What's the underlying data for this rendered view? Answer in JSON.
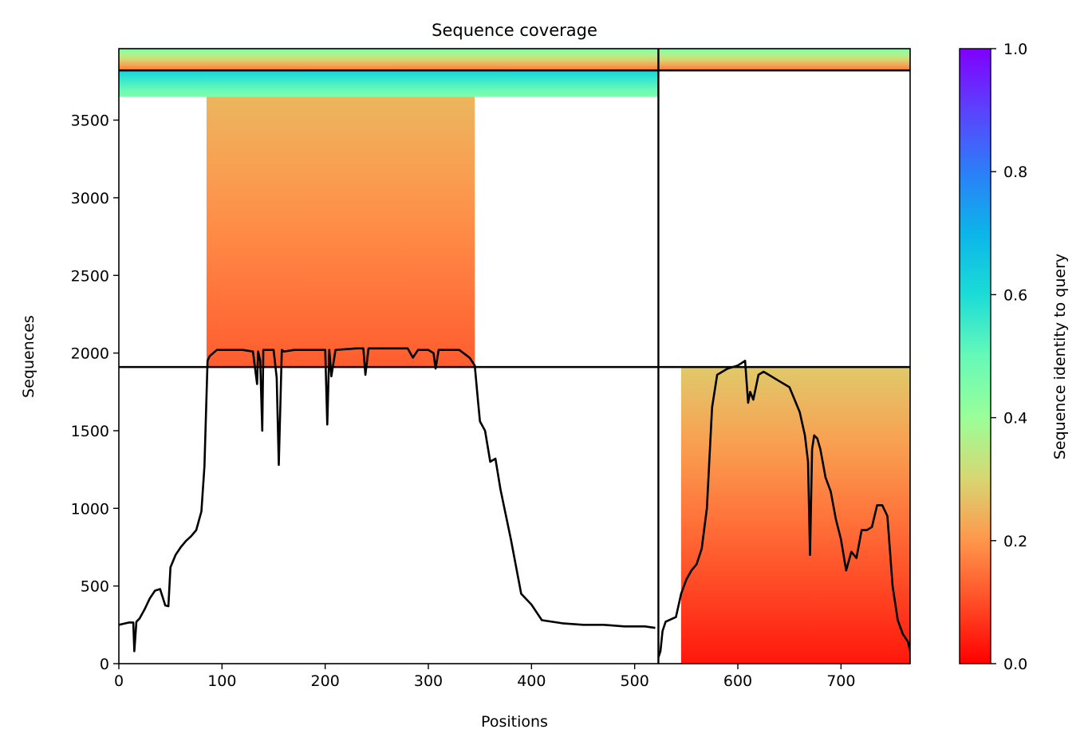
{
  "chart_data": {
    "type": "heatmap",
    "title": "Sequence coverage",
    "xlabel": "Positions",
    "ylabel": "Sequences",
    "xlim": [
      0,
      767
    ],
    "ylim": [
      0,
      3960
    ],
    "x_ticks": [
      0,
      100,
      200,
      300,
      400,
      500,
      600,
      700
    ],
    "y_ticks": [
      0,
      500,
      1000,
      1500,
      2000,
      2500,
      3000,
      3500
    ],
    "grid": false,
    "colorbar": {
      "label": "Sequence identity to query",
      "colormap": "rainbow_r",
      "range": [
        0,
        1
      ],
      "ticks": [
        0.0,
        0.2,
        0.4,
        0.6,
        0.8,
        1.0
      ]
    },
    "chain_boundaries": {
      "x": [
        523
      ],
      "y": [
        1910,
        3820
      ]
    },
    "coverage_blocks": [
      {
        "name": "chain A (paired)",
        "x_start": 0,
        "x_end": 523,
        "y_start": 3820,
        "y_end": 3960,
        "identity_bottom": 0.15,
        "identity_top": 0.45
      },
      {
        "name": "chain B (paired)",
        "x_start": 523,
        "x_end": 767,
        "y_start": 3820,
        "y_end": 3960,
        "identity_bottom": 0.15,
        "identity_top": 0.45
      },
      {
        "name": "chain A high identity",
        "x_start": 0,
        "x_end": 523,
        "y_start": 3650,
        "y_end": 3820,
        "identity_bottom": 0.45,
        "identity_top": 0.62
      },
      {
        "name": "chain A unpaired",
        "x_start": 85,
        "x_end": 345,
        "y_start": 1910,
        "y_end": 3650,
        "identity_bottom": 0.12,
        "identity_top": 0.25
      },
      {
        "name": "chain B unpaired",
        "x_start": 545,
        "x_end": 767,
        "y_start": 0,
        "y_end": 1910,
        "identity_bottom": 0.03,
        "identity_top": 0.28
      }
    ],
    "coverage_line_chain_a": {
      "x": [
        0,
        10,
        14,
        15,
        17,
        20,
        25,
        30,
        35,
        40,
        45,
        48,
        50,
        55,
        60,
        65,
        70,
        75,
        80,
        83,
        86,
        88,
        95,
        100,
        110,
        120,
        130,
        134,
        135,
        137,
        139,
        140,
        142,
        150,
        153,
        155,
        158,
        160,
        170,
        180,
        190,
        200,
        202,
        204,
        206,
        210,
        230,
        237,
        239,
        242,
        260,
        280,
        285,
        290,
        300,
        305,
        307,
        310,
        320,
        330,
        340,
        345,
        348,
        350,
        355,
        360,
        365,
        370,
        380,
        390,
        400,
        410,
        430,
        450,
        470,
        490,
        510,
        520
      ],
      "y": [
        250,
        265,
        265,
        80,
        270,
        290,
        350,
        420,
        470,
        480,
        375,
        370,
        620,
        700,
        750,
        790,
        820,
        860,
        980,
        1270,
        1950,
        1980,
        2020,
        2020,
        2020,
        2020,
        2010,
        1800,
        2010,
        1950,
        1500,
        2020,
        2020,
        2020,
        1840,
        1280,
        2020,
        2010,
        2020,
        2020,
        2020,
        2020,
        1540,
        2020,
        1850,
        2020,
        2030,
        2030,
        1860,
        2030,
        2030,
        2030,
        1970,
        2020,
        2020,
        2000,
        1900,
        2020,
        2020,
        2020,
        1970,
        1920,
        1700,
        1560,
        1500,
        1300,
        1320,
        1120,
        800,
        450,
        380,
        280,
        260,
        250,
        250,
        240,
        240,
        230
      ]
    },
    "coverage_line_chain_b": {
      "x": [
        523,
        525,
        527,
        530,
        540,
        545,
        550,
        555,
        560,
        565,
        570,
        575,
        580,
        585,
        590,
        600,
        607,
        610,
        612,
        615,
        620,
        625,
        630,
        640,
        650,
        660,
        665,
        668,
        670,
        672,
        674,
        677,
        680,
        685,
        690,
        695,
        700,
        705,
        710,
        715,
        720,
        725,
        730,
        735,
        740,
        745,
        750,
        755,
        760,
        765,
        767
      ],
      "y": [
        40,
        80,
        210,
        270,
        300,
        450,
        540,
        600,
        640,
        740,
        1000,
        1650,
        1860,
        1880,
        1900,
        1920,
        1950,
        1680,
        1750,
        1700,
        1860,
        1880,
        1860,
        1820,
        1780,
        1620,
        1470,
        1300,
        700,
        1380,
        1470,
        1450,
        1380,
        1200,
        1110,
        930,
        800,
        600,
        720,
        680,
        860,
        860,
        880,
        1020,
        1020,
        950,
        500,
        280,
        190,
        140,
        80
      ]
    }
  }
}
